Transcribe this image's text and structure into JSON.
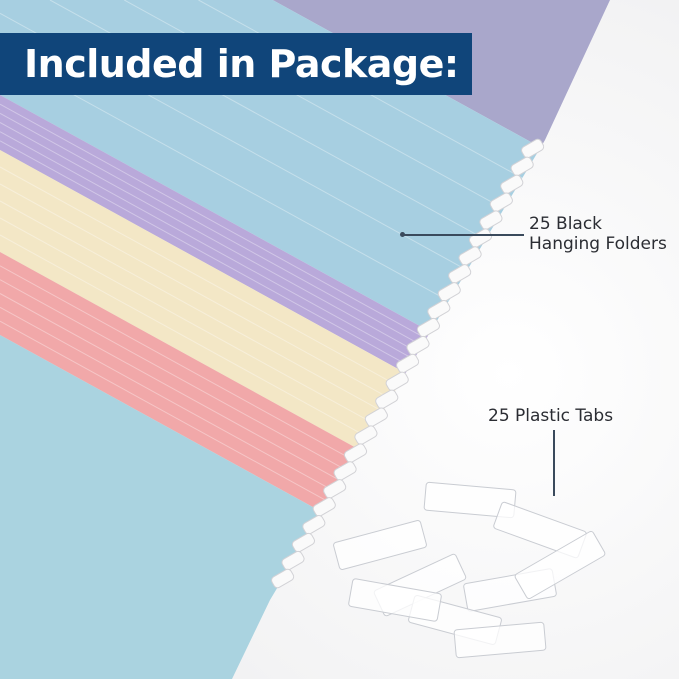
{
  "banner": {
    "title": "Included in Package:"
  },
  "callouts": {
    "folders": {
      "line1": "25 Black",
      "line2": "Hanging Folders"
    },
    "tabs": {
      "label": "25 Plastic Tabs"
    }
  },
  "colors": {
    "banner": "#10457a",
    "folders": [
      "#a9a7cb",
      "#a7cfe1",
      "#b9a9da",
      "#f3e7c6",
      "#f1a8a9",
      "#aad3e0"
    ]
  }
}
